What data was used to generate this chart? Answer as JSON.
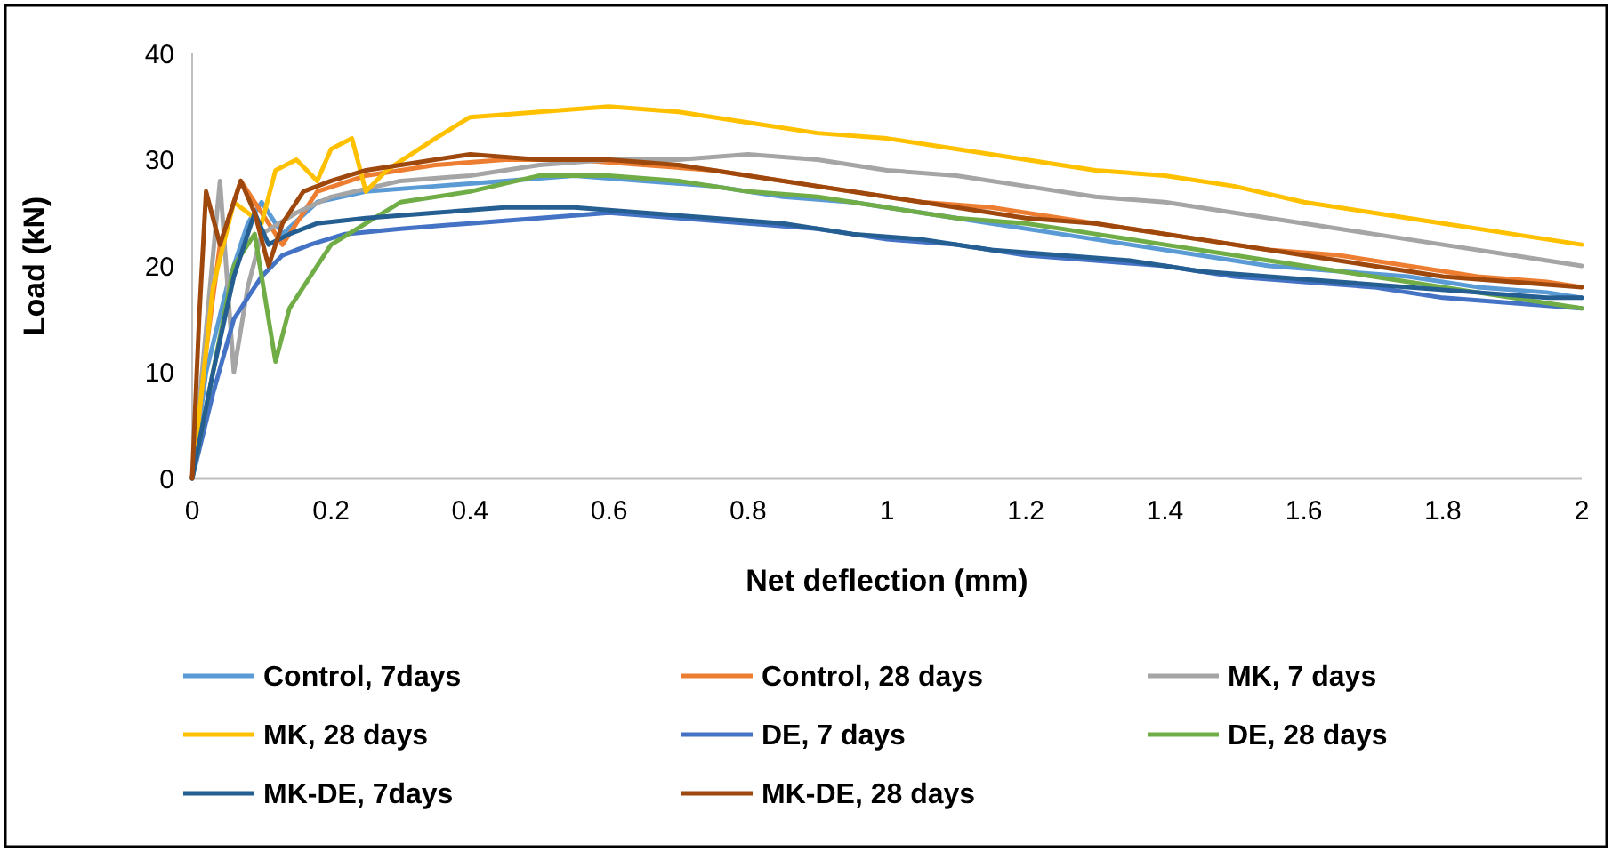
{
  "chart_data": {
    "type": "line",
    "xlabel": "Net deflection (mm)",
    "ylabel": "Load (kN)",
    "xlim": [
      0,
      2
    ],
    "ylim": [
      0,
      40
    ],
    "xticks": [
      0,
      {
        "value": 0.2,
        "label": "0.2"
      },
      {
        "value": 0.4,
        "label": "0.4"
      },
      {
        "value": 0.6,
        "label": "0.6"
      },
      {
        "value": 0.8,
        "label": "0.8"
      },
      1,
      {
        "value": 1.2,
        "label": "1.2"
      },
      {
        "value": 1.4,
        "label": "1.4"
      },
      {
        "value": 1.6,
        "label": "1.6"
      },
      {
        "value": 1.8,
        "label": "1.8"
      },
      2
    ],
    "yticks": [
      0,
      10,
      20,
      30,
      40
    ],
    "grid": false,
    "legend": "bottom",
    "marker": "none",
    "line_style": "solid",
    "series": [
      {
        "name": "Control, 7days",
        "color": "#5b9bd5",
        "x": [
          0,
          0.02,
          0.05,
          0.08,
          0.1,
          0.13,
          0.18,
          0.25,
          0.35,
          0.45,
          0.55,
          0.65,
          0.75,
          0.85,
          0.95,
          1.05,
          1.15,
          1.25,
          1.35,
          1.45,
          1.55,
          1.65,
          1.75,
          1.85,
          1.95,
          2
        ],
        "values": [
          0,
          10,
          18,
          24,
          26,
          23,
          26,
          27,
          27.5,
          28,
          28.5,
          28,
          27.5,
          26.5,
          26,
          25,
          24,
          23,
          22,
          21,
          20,
          19.5,
          19,
          18,
          17.5,
          17
        ]
      },
      {
        "name": "Control, 28 days",
        "color": "#ed7d31",
        "x": [
          0,
          0.02,
          0.04,
          0.07,
          0.1,
          0.13,
          0.18,
          0.25,
          0.35,
          0.45,
          0.55,
          0.65,
          0.75,
          0.85,
          0.95,
          1.05,
          1.15,
          1.25,
          1.35,
          1.45,
          1.55,
          1.65,
          1.75,
          1.85,
          1.95,
          2
        ],
        "values": [
          0,
          12,
          22,
          28,
          25,
          22,
          27,
          28.5,
          29.5,
          30,
          30,
          29.5,
          29,
          28,
          27,
          26,
          25.5,
          24.5,
          23.5,
          22.5,
          21.5,
          21,
          20,
          19,
          18.5,
          18
        ]
      },
      {
        "name": "MK, 7 days",
        "color": "#a5a5a5",
        "x": [
          0,
          0.02,
          0.04,
          0.06,
          0.08,
          0.1,
          0.15,
          0.2,
          0.3,
          0.4,
          0.5,
          0.6,
          0.7,
          0.8,
          0.9,
          1,
          1.1,
          1.2,
          1.3,
          1.4,
          1.5,
          1.6,
          1.7,
          1.8,
          1.9,
          2
        ],
        "values": [
          0,
          14,
          28,
          10,
          18,
          23,
          25,
          26.5,
          28,
          28.5,
          29.5,
          30,
          30,
          30.5,
          30,
          29,
          28.5,
          27.5,
          26.5,
          26,
          25,
          24,
          23,
          22,
          21,
          20
        ]
      },
      {
        "name": "MK, 28 days",
        "color": "#ffc000",
        "x": [
          0,
          0.03,
          0.06,
          0.1,
          0.12,
          0.15,
          0.18,
          0.2,
          0.23,
          0.25,
          0.28,
          0.35,
          0.4,
          0.5,
          0.6,
          0.7,
          0.8,
          0.9,
          1,
          1.1,
          1.2,
          1.3,
          1.4,
          1.5,
          1.6,
          1.7,
          1.8,
          1.9,
          2
        ],
        "values": [
          0,
          18,
          26,
          24,
          29,
          30,
          28,
          31,
          32,
          27,
          29,
          32,
          34,
          34.5,
          35,
          34.5,
          33.5,
          32.5,
          32,
          31,
          30,
          29,
          28.5,
          27.5,
          26,
          25,
          24,
          23,
          22
        ]
      },
      {
        "name": "DE, 7 days",
        "color": "#4472c4",
        "x": [
          0,
          0.03,
          0.06,
          0.1,
          0.13,
          0.17,
          0.22,
          0.3,
          0.4,
          0.5,
          0.6,
          0.7,
          0.8,
          0.9,
          1,
          1.1,
          1.2,
          1.3,
          1.4,
          1.5,
          1.6,
          1.7,
          1.8,
          1.9,
          2
        ],
        "values": [
          0,
          8,
          15,
          19,
          21,
          22,
          23,
          23.5,
          24,
          24.5,
          25,
          24.5,
          24,
          23.5,
          22.5,
          22,
          21,
          20.5,
          20,
          19,
          18.5,
          18,
          17,
          16.5,
          16
        ]
      },
      {
        "name": "DE, 28 days",
        "color": "#70ad47",
        "x": [
          0,
          0.03,
          0.06,
          0.09,
          0.12,
          0.14,
          0.17,
          0.2,
          0.25,
          0.3,
          0.4,
          0.5,
          0.6,
          0.7,
          0.8,
          0.9,
          1,
          1.1,
          1.2,
          1.3,
          1.4,
          1.5,
          1.6,
          1.7,
          1.8,
          1.9,
          2
        ],
        "values": [
          0,
          10,
          20,
          23,
          11,
          16,
          19,
          22,
          24,
          26,
          27,
          28.5,
          28.5,
          28,
          27,
          26.5,
          25.5,
          24.5,
          24,
          23,
          22,
          21,
          20,
          19,
          18,
          17,
          16
        ]
      },
      {
        "name": "MK-DE, 7days",
        "color": "#255e91",
        "x": [
          0,
          0.03,
          0.06,
          0.09,
          0.11,
          0.14,
          0.18,
          0.25,
          0.35,
          0.45,
          0.55,
          0.65,
          0.75,
          0.85,
          0.95,
          1.05,
          1.15,
          1.25,
          1.35,
          1.45,
          1.55,
          1.65,
          1.75,
          1.85,
          1.95,
          2
        ],
        "values": [
          0,
          10,
          19,
          25,
          22,
          23,
          24,
          24.5,
          25,
          25.5,
          25.5,
          25,
          24.5,
          24,
          23,
          22.5,
          21.5,
          21,
          20.5,
          19.5,
          19,
          18.5,
          18,
          17.5,
          17,
          17
        ]
      },
      {
        "name": "MK-DE, 28 days",
        "color": "#9e480e",
        "x": [
          0,
          0.01,
          0.02,
          0.04,
          0.07,
          0.09,
          0.11,
          0.13,
          0.16,
          0.2,
          0.25,
          0.3,
          0.4,
          0.5,
          0.6,
          0.7,
          0.8,
          0.9,
          1,
          1.1,
          1.2,
          1.3,
          1.4,
          1.5,
          1.6,
          1.7,
          1.8,
          1.9,
          2
        ],
        "values": [
          0,
          15,
          27,
          22,
          28,
          25,
          20,
          24,
          27,
          28,
          29,
          29.5,
          30.5,
          30,
          30,
          29.5,
          28.5,
          27.5,
          26.5,
          25.5,
          24.5,
          24,
          23,
          22,
          21,
          20,
          19,
          18.5,
          18
        ]
      }
    ]
  }
}
